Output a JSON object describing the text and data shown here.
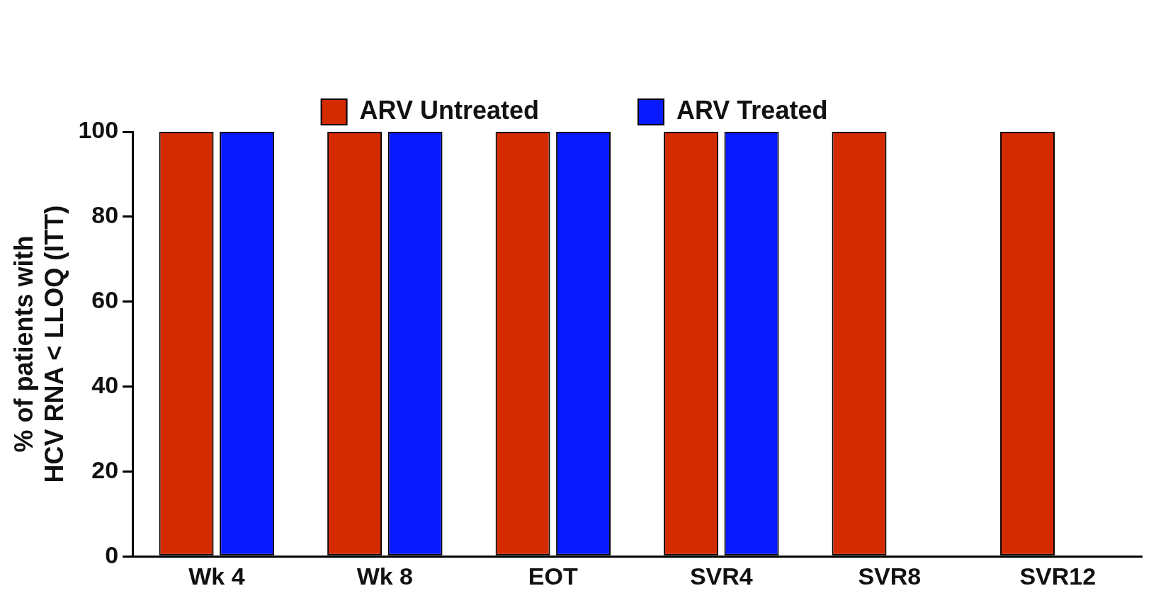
{
  "chart_data": {
    "type": "bar",
    "ylabel": "% of patients with\nHCV RNA < LLOQ (ITT)",
    "categories": [
      "Wk 4",
      "Wk 8",
      "EOT",
      "SVR4",
      "SVR8",
      "SVR12"
    ],
    "series": [
      {
        "name": "ARV Untreated",
        "color": "#d42a00",
        "values": [
          100,
          100,
          100,
          100,
          100,
          100
        ]
      },
      {
        "name": "ARV Treated",
        "color": "#0a1aff",
        "values": [
          100,
          100,
          100,
          100,
          null,
          null
        ]
      }
    ],
    "ylim": [
      0,
      100
    ],
    "yticks": [
      0,
      20,
      40,
      60,
      80,
      100
    ],
    "grid": false,
    "legend": "top"
  }
}
